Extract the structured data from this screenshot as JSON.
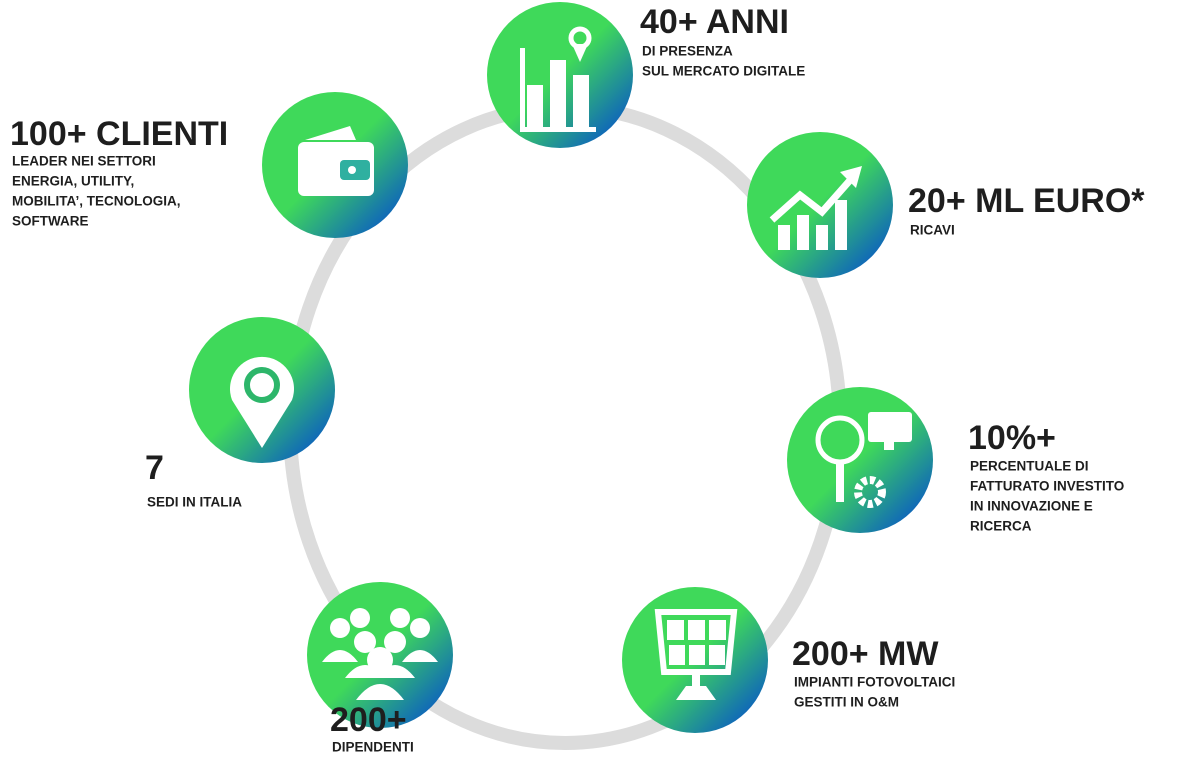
{
  "items": [
    {
      "title": "40+ ANNI",
      "lines": [
        "DI PRESENZA",
        "SUL MERCATO DIGITALE"
      ]
    },
    {
      "title": "100+ CLIENTI",
      "lines": [
        "LEADER NEI SETTORI",
        "ENERGIA, UTILITY,",
        "MOBILITA’, TECNOLOGIA,",
        "SOFTWARE"
      ]
    },
    {
      "title": "20+ ML EURO*",
      "lines": [
        "RICAVI"
      ]
    },
    {
      "title": "7",
      "lines": [
        "SEDI IN ITALIA"
      ]
    },
    {
      "title": "10%+",
      "lines": [
        "PERCENTUALE DI",
        "FATTURATO INVESTITO",
        "IN INNOVAZIONE E",
        "RICERCA"
      ]
    },
    {
      "title": "200+ MW",
      "lines": [
        "IMPIANTI FOTOVOLTAICI",
        "GESTITI IN O&M"
      ]
    },
    {
      "title": "200+",
      "lines": [
        "DIPENDENTI"
      ]
    }
  ]
}
